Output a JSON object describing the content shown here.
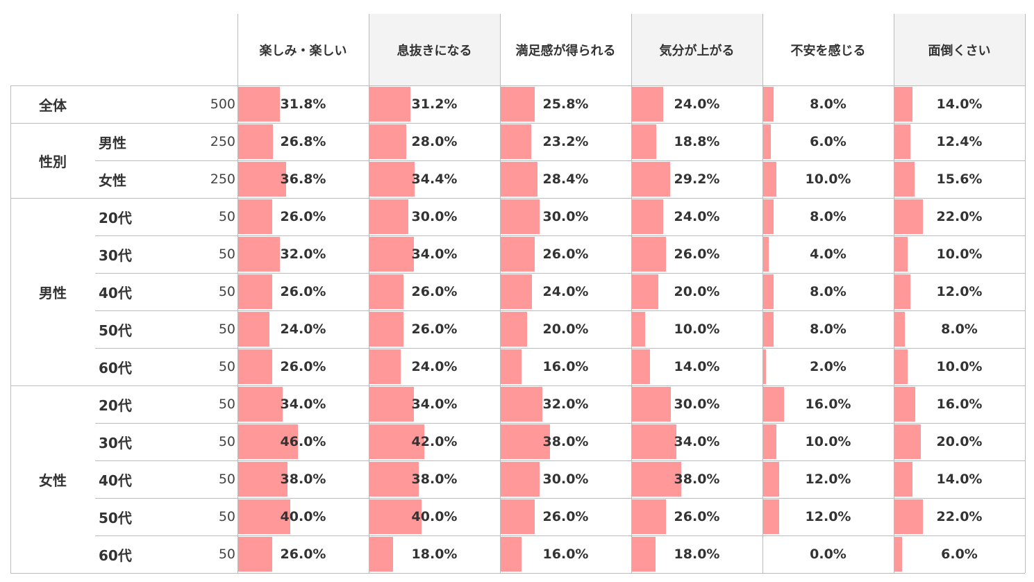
{
  "chart_data": {
    "type": "table",
    "columns": [
      "楽しみ・楽しい",
      "息抜きになる",
      "満足感が得られる",
      "気分が上がる",
      "不安を感じる",
      "面倒くさい"
    ],
    "groups": [
      {
        "label": "全体",
        "rows": [
          {
            "label": "",
            "n": "500",
            "values": [
              31.8,
              31.2,
              25.8,
              24.0,
              8.0,
              14.0
            ]
          }
        ]
      },
      {
        "label": "性別",
        "rows": [
          {
            "label": "男性",
            "n": "250",
            "values": [
              26.8,
              28.0,
              23.2,
              18.8,
              6.0,
              12.4
            ]
          },
          {
            "label": "女性",
            "n": "250",
            "values": [
              36.8,
              34.4,
              28.4,
              29.2,
              10.0,
              15.6
            ]
          }
        ]
      },
      {
        "label": "男性",
        "rows": [
          {
            "label": "20代",
            "n": "50",
            "values": [
              26.0,
              30.0,
              30.0,
              24.0,
              8.0,
              22.0
            ]
          },
          {
            "label": "30代",
            "n": "50",
            "values": [
              32.0,
              34.0,
              26.0,
              26.0,
              4.0,
              10.0
            ]
          },
          {
            "label": "40代",
            "n": "50",
            "values": [
              26.0,
              26.0,
              24.0,
              20.0,
              8.0,
              12.0
            ]
          },
          {
            "label": "50代",
            "n": "50",
            "values": [
              24.0,
              26.0,
              20.0,
              10.0,
              8.0,
              8.0
            ]
          },
          {
            "label": "60代",
            "n": "50",
            "values": [
              26.0,
              24.0,
              16.0,
              14.0,
              2.0,
              10.0
            ]
          }
        ]
      },
      {
        "label": "女性",
        "rows": [
          {
            "label": "20代",
            "n": "50",
            "values": [
              34.0,
              34.0,
              32.0,
              30.0,
              16.0,
              16.0
            ]
          },
          {
            "label": "30代",
            "n": "50",
            "values": [
              46.0,
              42.0,
              38.0,
              34.0,
              10.0,
              20.0
            ]
          },
          {
            "label": "40代",
            "n": "50",
            "values": [
              38.0,
              38.0,
              30.0,
              38.0,
              12.0,
              14.0
            ]
          },
          {
            "label": "50代",
            "n": "50",
            "values": [
              40.0,
              40.0,
              26.0,
              26.0,
              12.0,
              22.0
            ]
          },
          {
            "label": "60代",
            "n": "50",
            "values": [
              26.0,
              18.0,
              16.0,
              18.0,
              0.0,
              6.0
            ]
          }
        ]
      }
    ],
    "value_suffix": "%",
    "bar_color": "#ff9999",
    "header_background": "#f3f3f3",
    "header_shaded": [
      false,
      true,
      false,
      true,
      false,
      true
    ]
  }
}
